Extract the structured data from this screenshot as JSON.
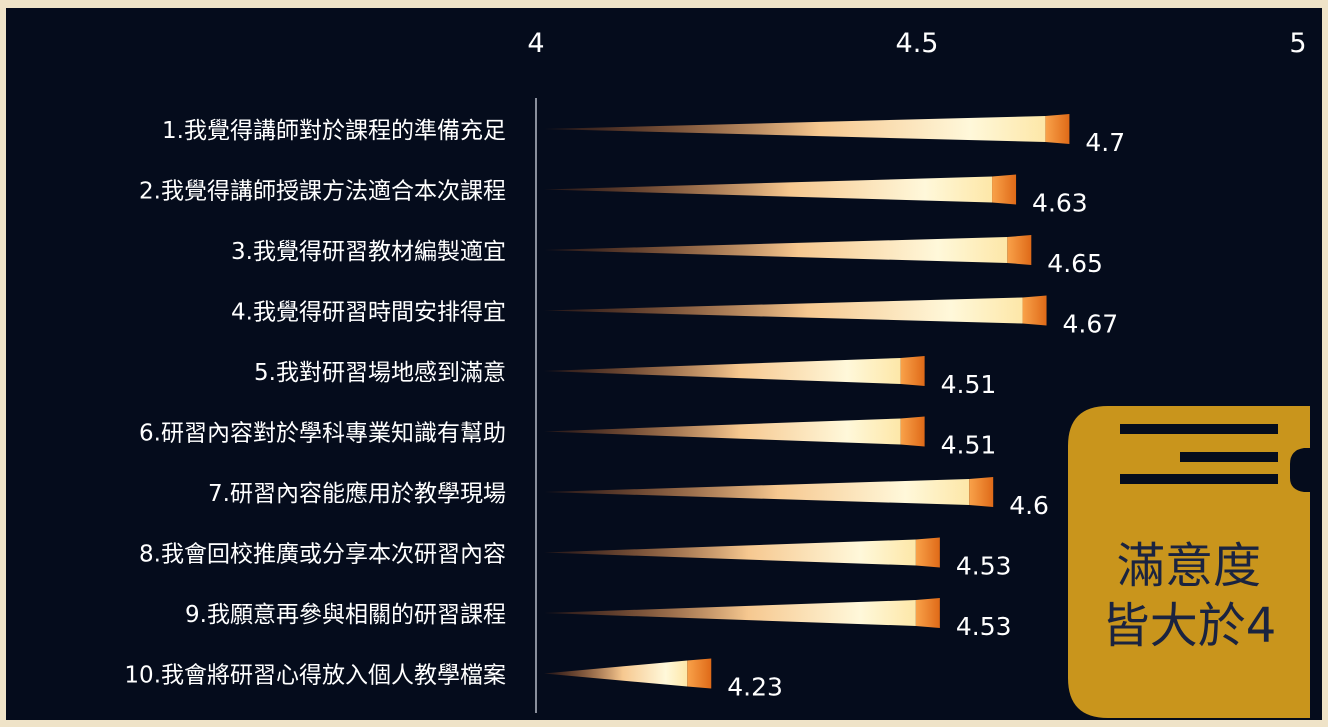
{
  "chart_data": {
    "type": "bar",
    "orientation": "horizontal",
    "categories": [
      "1.我覺得講師對於課程的準備充足",
      "2.我覺得講師授課方法適合本次課程",
      "3.我覺得研習教材編製適宜",
      "4.我覺得研習時間安排得宜",
      "5.我對研習場地感到滿意",
      "6.研習內容對於學科專業知識有幫助",
      "7.研習內容能應用於教學現場",
      "8.我會回校推廣或分享本次研習內容",
      "9.我願意再參與相關的研習課程",
      "10.我會將研習心得放入個人教學檔案"
    ],
    "values": [
      4.7,
      4.63,
      4.65,
      4.67,
      4.51,
      4.51,
      4.6,
      4.53,
      4.53,
      4.23
    ],
    "value_labels": [
      "4.7",
      "4.63",
      "4.65",
      "4.67",
      "4.51",
      "4.51",
      "4.6",
      "4.53",
      "4.53",
      "4.23"
    ],
    "xlim": [
      4,
      5
    ],
    "xticks": [
      "4",
      "4.5",
      "5"
    ],
    "axis_position": "top",
    "grid": false,
    "legend": "none"
  },
  "colors": {
    "background": "#050c1c",
    "bar_light": "#fffbe0",
    "bar_mid": "#f7b46a",
    "bar_dark": "#e8731c",
    "badge": "#c9951c",
    "text": "#ffffff",
    "badge_text": "#1a2340"
  },
  "badge": {
    "icon": "book-icon",
    "line1": "滿意度",
    "line2": "皆大於4"
  }
}
